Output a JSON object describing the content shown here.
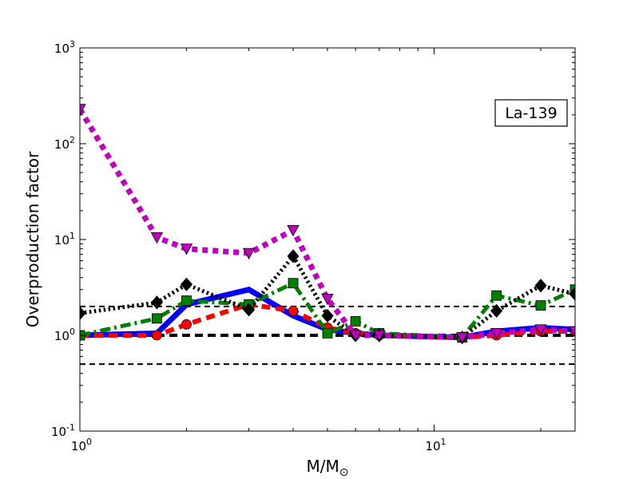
{
  "chart_data": {
    "type": "line",
    "title": "",
    "annotation": "La-139",
    "xlabel": "M/M",
    "xlabel_subscript": "⊙",
    "ylabel": "Overproduction factor",
    "xscale": "log",
    "yscale": "log",
    "xlim": [
      1,
      25
    ],
    "ylim": [
      0.1,
      1000
    ],
    "grid": false,
    "x_ticks": [
      {
        "value": 1,
        "base": "10",
        "exp": "0"
      },
      {
        "value": 10,
        "base": "10",
        "exp": "1"
      }
    ],
    "y_ticks": [
      {
        "value": 0.1,
        "base": "10",
        "exp": "-1"
      },
      {
        "value": 1,
        "base": "10",
        "exp": "0"
      },
      {
        "value": 10,
        "base": "10",
        "exp": "1"
      },
      {
        "value": 100,
        "base": "10",
        "exp": "2"
      },
      {
        "value": 1000,
        "base": "10",
        "exp": "3"
      }
    ],
    "reference_lines": [
      {
        "y": 2.0,
        "style": "thin-dashed",
        "color": "#000000"
      },
      {
        "y": 1.0,
        "style": "thick-dashed",
        "color": "#000000"
      },
      {
        "y": 0.5,
        "style": "thin-dashed",
        "color": "#000000"
      }
    ],
    "series": [
      {
        "color": "#0000ff",
        "dash": "solid",
        "marker": "none",
        "width": 7,
        "x": [
          1.0,
          1.65,
          2.0,
          3.0,
          4.0,
          5.0,
          6.0,
          7.0,
          12.0,
          15.0,
          20.0,
          25.0
        ],
        "y": [
          1.0,
          1.05,
          2.1,
          3.0,
          1.6,
          1.15,
          1.05,
          1.0,
          0.95,
          1.1,
          1.2,
          1.15
        ]
      },
      {
        "color": "#ff0000",
        "dash": "dashed",
        "marker": "circle",
        "width": 6,
        "x": [
          1.0,
          1.65,
          2.0,
          3.0,
          4.0,
          5.0,
          6.0,
          7.0,
          12.0,
          15.0,
          20.0,
          25.0
        ],
        "y": [
          1.0,
          1.0,
          1.3,
          2.1,
          1.8,
          1.2,
          1.05,
          1.0,
          0.95,
          1.0,
          1.1,
          1.1
        ]
      },
      {
        "color": "#008000",
        "dash": "dashdot",
        "marker": "square",
        "width": 5,
        "x": [
          1.0,
          1.65,
          2.0,
          3.0,
          4.0,
          5.0,
          6.0,
          7.0,
          12.0,
          15.0,
          20.0,
          25.0
        ],
        "y": [
          1.0,
          1.5,
          2.3,
          2.1,
          3.5,
          1.05,
          1.4,
          1.05,
          0.95,
          2.6,
          2.05,
          3.0
        ]
      },
      {
        "color": "#000000",
        "dash": "dotted",
        "marker": "diamond",
        "width": 5,
        "x": [
          1.0,
          1.65,
          2.0,
          3.0,
          4.0,
          5.0,
          6.0,
          7.0,
          12.0,
          15.0,
          20.0,
          25.0
        ],
        "y": [
          1.7,
          2.2,
          3.4,
          1.85,
          6.7,
          1.6,
          1.0,
          1.0,
          0.95,
          1.8,
          3.3,
          2.7
        ]
      },
      {
        "color": "#bf00bf",
        "dash": "dotted",
        "marker": "triangle-down",
        "width": 7,
        "x": [
          1.0,
          1.65,
          2.0,
          3.0,
          4.0,
          5.0,
          6.0,
          7.0,
          12.0,
          15.0,
          20.0,
          25.0
        ],
        "y": [
          230.0,
          10.5,
          8.0,
          7.2,
          12.5,
          2.4,
          1.0,
          1.0,
          0.95,
          1.05,
          1.15,
          1.1
        ]
      }
    ]
  }
}
